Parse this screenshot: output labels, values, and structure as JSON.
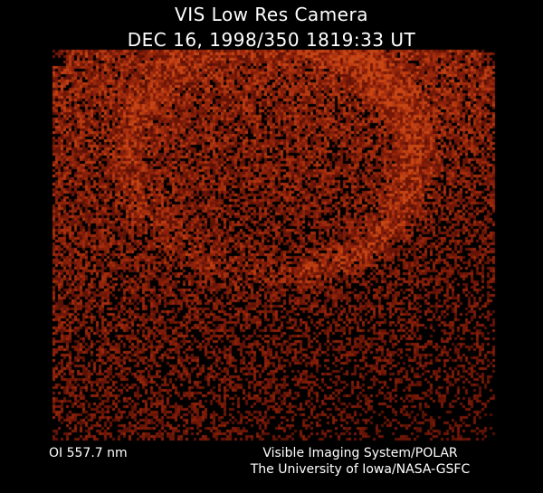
{
  "header": {
    "title": "VIS Low Res Camera",
    "subtitle": "DEC 16, 1998/350 1819:33 UT"
  },
  "footer": {
    "filter": "OI  557.7 nm",
    "instrument_line1": "Visible Imaging System/POLAR",
    "instrument_line2": "The University of Iowa/NASA-GSFC"
  },
  "colors": {
    "background": "#000000",
    "auroral_emission": "#b03a10"
  }
}
